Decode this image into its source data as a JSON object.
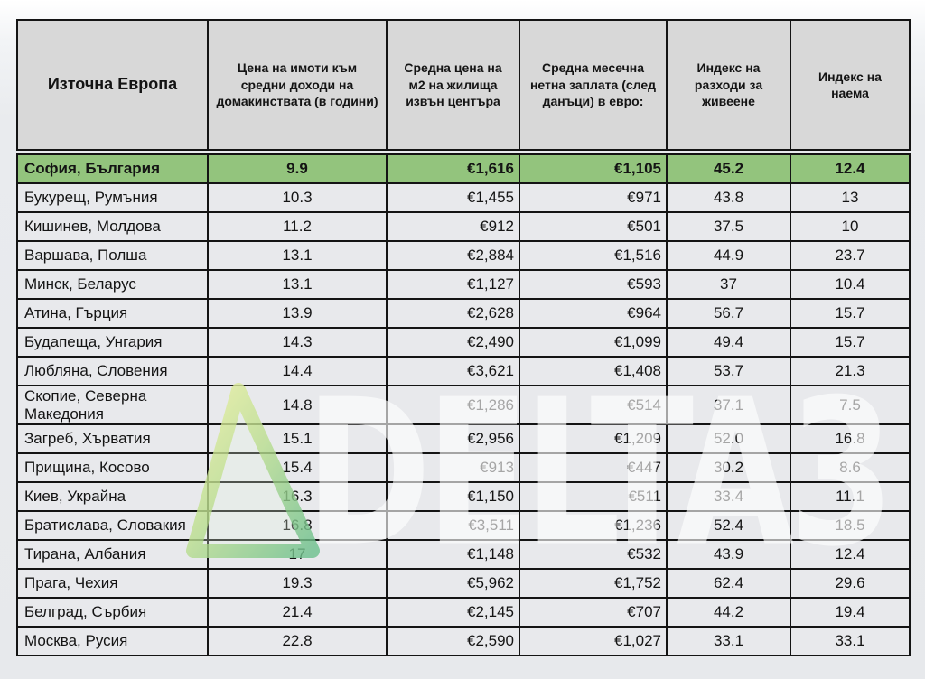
{
  "chart_data": {
    "type": "table",
    "columns": [
      "Източна Европа",
      "Цена на имоти към средни доходи на домакинствата (в години)",
      "Средна цена на м2 на жилища извън центъра",
      "Средна месечна нетна заплата (след данъци) в евро:",
      "Индекс на разходи за живеене",
      "Индекс на наема"
    ],
    "rows": [
      [
        "София, България",
        "9.9",
        "€1,616",
        "€1,105",
        "45.2",
        "12.4"
      ],
      [
        "Букурещ, Румъния",
        "10.3",
        "€1,455",
        "€971",
        "43.8",
        "13"
      ],
      [
        "Кишинев, Молдова",
        "11.2",
        "€912",
        "€501",
        "37.5",
        "10"
      ],
      [
        "Варшава, Полша",
        "13.1",
        "€2,884",
        "€1,516",
        "44.9",
        "23.7"
      ],
      [
        "Минск, Беларус",
        "13.1",
        "€1,127",
        "€593",
        "37",
        "10.4"
      ],
      [
        "Атина, Гърция",
        "13.9",
        "€2,628",
        "€964",
        "56.7",
        "15.7"
      ],
      [
        "Будапеща, Унгария",
        "14.3",
        "€2,490",
        "€1,099",
        "49.4",
        "15.7"
      ],
      [
        "Любляна, Словения",
        "14.4",
        "€3,621",
        "€1,408",
        "53.7",
        "21.3"
      ],
      [
        "Скопие, Северна Македония",
        "14.8",
        "€1,286",
        "€514",
        "37.1",
        "7.5"
      ],
      [
        "Загреб, Хърватия",
        "15.1",
        "€2,956",
        "€1,209",
        "52.0",
        "16.8"
      ],
      [
        "Прищина, Косово",
        "15.4",
        "€913",
        "€447",
        "30.2",
        "8.6"
      ],
      [
        "Киев, Украйна",
        "16.3",
        "€1,150",
        "€511",
        "33.4",
        "11.1"
      ],
      [
        "Братислава, Словакия",
        "16.8",
        "€3,511",
        "€1,236",
        "52.4",
        "18.5"
      ],
      [
        "Тирана, Албания",
        "17",
        "€1,148",
        "€532",
        "43.9",
        "12.4"
      ],
      [
        "Прага, Чехия",
        "19.3",
        "€5,962",
        "€1,752",
        "62.4",
        "29.6"
      ],
      [
        "Белград, Сърбия",
        "21.4",
        "€2,145",
        "€707",
        "44.2",
        "19.4"
      ],
      [
        "Москва, Русия",
        "22.8",
        "€2,590",
        "€1,027",
        "33.1",
        "33.1"
      ]
    ],
    "highlighted_row": "София, България",
    "title": "",
    "legend": "none",
    "grid": "all-borders"
  },
  "watermark": {
    "text": "DELTA3",
    "triangle_color_top": "#eef2a0",
    "triangle_color_bottom": "#6cc08c"
  },
  "colors": {
    "page_bg": "#e9ebee",
    "header_bg": "#d8d8d8",
    "row_bg": "#e8e9ec",
    "highlight_bg": "#93c47d",
    "border": "#141414",
    "text": "#141414",
    "watermark_text": "rgba(255,255,255,0.62)"
  }
}
